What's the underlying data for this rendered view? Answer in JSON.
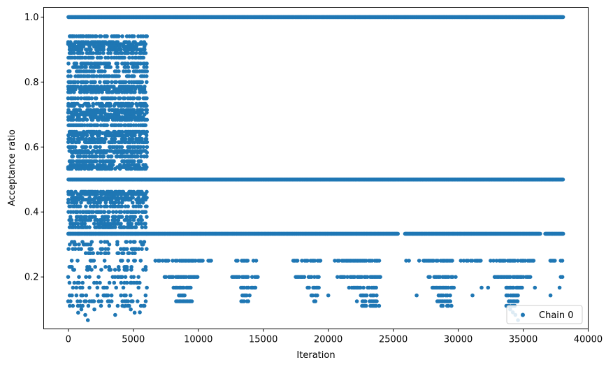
{
  "chart_data": {
    "type": "scatter",
    "xlabel": "Iteration",
    "ylabel": "Acceptance ratio",
    "xlim": [
      -1900,
      40000
    ],
    "ylim": [
      0.04,
      1.03
    ],
    "xticks": [
      0,
      5000,
      10000,
      15000,
      20000,
      25000,
      30000,
      35000,
      40000
    ],
    "xtick_labels": [
      "0",
      "5000",
      "10000",
      "15000",
      "20000",
      "25000",
      "30000",
      "35000",
      "40000"
    ],
    "yticks": [
      0.2,
      0.4,
      0.6,
      0.8,
      1.0
    ],
    "ytick_labels": [
      "0.2",
      "0.4",
      "0.6",
      "0.8",
      "1.0"
    ],
    "grid": false,
    "legend_position": "lower-right",
    "series": [
      {
        "name": "Chain 0",
        "color": "#1f77b4",
        "marker": "circle",
        "x_range": [
          0,
          38100
        ],
        "levels": [
          {
            "y": 1.0,
            "segments": [
              [
                0,
                38100
              ]
            ]
          },
          {
            "y": 0.5,
            "segments": [
              [
                0,
                38100
              ]
            ]
          },
          {
            "y": 0.333,
            "segments": [
              [
                0,
                25400
              ],
              [
                25900,
                36300
              ],
              [
                36700,
                38100
              ]
            ]
          },
          {
            "y": 0.25,
            "segments": [
              [
                6700,
                11200
              ],
              [
                12800,
                14500
              ],
              [
                17200,
                19400
              ],
              [
                20500,
                24100
              ],
              [
                26000,
                26400
              ],
              [
                27000,
                29600
              ],
              [
                30200,
                31800
              ],
              [
                32500,
                35800
              ],
              [
                37100,
                37500
              ],
              [
                37900,
                38100
              ]
            ]
          },
          {
            "y": 0.2,
            "segments": [
              [
                7400,
                10000
              ],
              [
                12600,
                14600
              ],
              [
                17500,
                19300
              ],
              [
                20700,
                24000
              ],
              [
                27600,
                29900
              ],
              [
                32800,
                35600
              ],
              [
                37900,
                38100
              ]
            ]
          },
          {
            "y": 0.167,
            "segments": [
              [
                8100,
                9500
              ],
              [
                13300,
                14400
              ],
              [
                18400,
                19300
              ],
              [
                21600,
                23700
              ],
              [
                27900,
                29700
              ],
              [
                33700,
                35100
              ]
            ]
          },
          {
            "y": 0.143,
            "segments": [
              [
                8400,
                9000
              ],
              [
                13400,
                14000
              ],
              [
                18700,
                19200
              ],
              [
                22400,
                23800
              ],
              [
                28500,
                29400
              ],
              [
                33600,
                34600
              ]
            ]
          },
          {
            "y": 0.125,
            "segments": [
              [
                8300,
                9600
              ],
              [
                13300,
                13900
              ],
              [
                18800,
                19100
              ],
              [
                22200,
                23800
              ],
              [
                28400,
                29400
              ],
              [
                33900,
                34600
              ]
            ]
          },
          {
            "y": 0.111,
            "segments": [
              [
                22700,
                24000
              ],
              [
                28700,
                29500
              ],
              [
                33700,
                34400
              ]
            ]
          }
        ],
        "early_phase": {
          "x_range": [
            0,
            6100
          ],
          "y_levels": [
            0.941,
            0.923,
            0.917,
            0.909,
            0.9,
            0.889,
            0.875,
            0.857,
            0.846,
            0.833,
            0.818,
            0.8,
            0.786,
            0.778,
            0.769,
            0.75,
            0.733,
            0.727,
            0.714,
            0.706,
            0.7,
            0.692,
            0.684,
            0.667,
            0.647,
            0.643,
            0.636,
            0.625,
            0.615,
            0.6,
            0.588,
            0.583,
            0.571,
            0.556,
            0.545,
            0.538,
            0.533,
            0.462,
            0.455,
            0.444,
            0.438,
            0.429,
            0.417,
            0.4,
            0.385,
            0.375,
            0.364,
            0.353,
            0.333,
            0.308,
            0.3,
            0.286,
            0.273,
            0.25,
            0.231,
            0.222,
            0.2,
            0.182,
            0.167,
            0.143,
            0.125,
            0.111
          ]
        },
        "extra_points": [
          [
            1000,
            0.1
          ],
          [
            1300,
            0.083
          ],
          [
            1500,
            0.067
          ],
          [
            750,
            0.09
          ],
          [
            2000,
            0.1
          ],
          [
            3600,
            0.083
          ],
          [
            4300,
            0.11
          ],
          [
            4800,
            0.1
          ],
          [
            5100,
            0.09
          ],
          [
            5500,
            0.091
          ],
          [
            5800,
            0.111
          ],
          [
            20000,
            0.143
          ],
          [
            22600,
            0.111
          ],
          [
            26800,
            0.143
          ],
          [
            31100,
            0.143
          ],
          [
            31800,
            0.167
          ],
          [
            32300,
            0.167
          ],
          [
            35900,
            0.167
          ],
          [
            37100,
            0.143
          ],
          [
            37800,
            0.167
          ],
          [
            34000,
            0.1
          ],
          [
            34200,
            0.091
          ],
          [
            34400,
            0.083
          ],
          [
            34600,
            0.067
          ]
        ]
      }
    ]
  }
}
